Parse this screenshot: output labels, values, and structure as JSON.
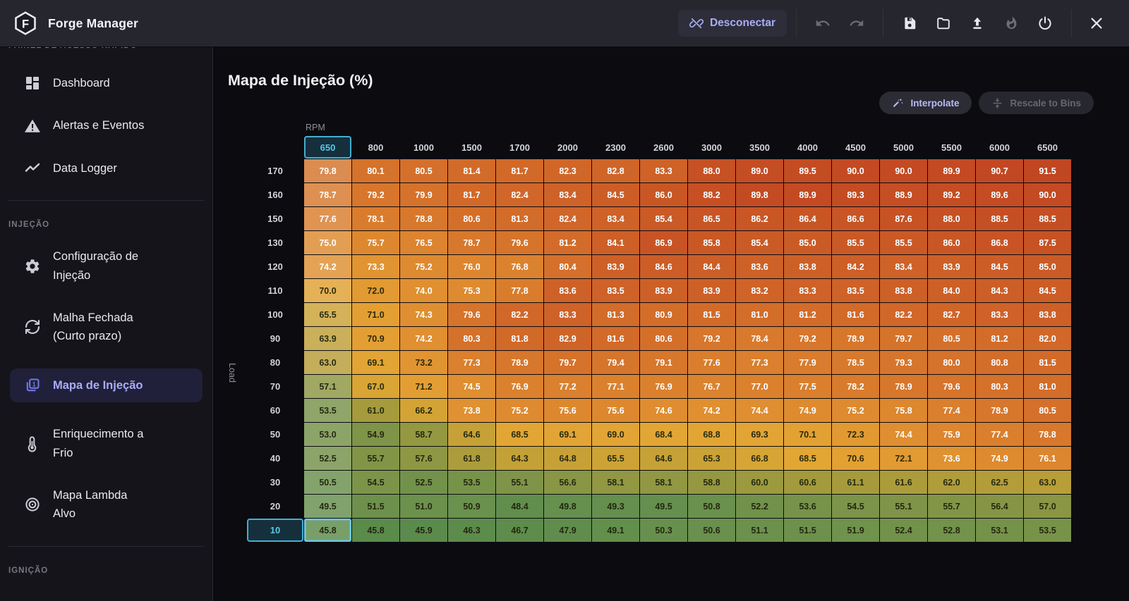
{
  "app": {
    "title": "Forge Manager"
  },
  "toolbar": {
    "disconnect_label": "Desconectar",
    "buttons": [
      "disconnect",
      "undo",
      "redo",
      "save",
      "open-folder",
      "upload",
      "burn",
      "power",
      "close"
    ]
  },
  "sidebar": {
    "sections": [
      {
        "label": "PAINEL DE ACESSO RÁPIDO",
        "clipped": true,
        "items": [
          {
            "icon": "dashboard",
            "label": "Dashboard"
          },
          {
            "icon": "alerts",
            "label": "Alertas e Eventos"
          },
          {
            "icon": "logger",
            "label": "Data Logger"
          }
        ]
      },
      {
        "label": "INJEÇÃO",
        "items": [
          {
            "icon": "gear",
            "label": "Configuração de\nInjeção"
          },
          {
            "icon": "sync",
            "label": "Malha Fechada\n(Curto prazo)"
          },
          {
            "icon": "injection-map",
            "label": "Mapa de Injeção",
            "active": true
          },
          {
            "icon": "thermometer",
            "label": "Enriquecimento a\nFrio"
          },
          {
            "icon": "lambda",
            "label": "Mapa Lambda\nAlvo"
          }
        ]
      },
      {
        "label": "IGNIÇÃO",
        "items": []
      }
    ]
  },
  "main": {
    "title": "Mapa de Injeção (%)",
    "interpolate_label": "Interpolate",
    "rescale_label": "Rescale to Bins"
  },
  "chart_data": {
    "type": "heatmap",
    "title": "Mapa de Injeção (%)",
    "xlabel": "RPM",
    "ylabel": "Load",
    "columns": [
      650,
      800,
      1000,
      1500,
      1700,
      2000,
      2300,
      2600,
      3000,
      3500,
      4000,
      4500,
      5000,
      5500,
      6000,
      6500
    ],
    "rows": [
      170,
      160,
      150,
      130,
      120,
      110,
      100,
      90,
      80,
      70,
      60,
      50,
      40,
      30,
      20,
      10
    ],
    "values": [
      [
        79.8,
        80.1,
        80.5,
        81.4,
        81.7,
        82.3,
        82.8,
        83.3,
        88.0,
        89.0,
        89.5,
        90.0,
        90.0,
        89.9,
        90.7,
        91.5
      ],
      [
        78.7,
        79.2,
        79.9,
        81.7,
        82.4,
        83.4,
        84.5,
        86.0,
        88.2,
        89.8,
        89.9,
        89.3,
        88.9,
        89.2,
        89.6,
        90.0
      ],
      [
        77.6,
        78.1,
        78.8,
        80.6,
        81.3,
        82.4,
        83.4,
        85.4,
        86.5,
        86.2,
        86.4,
        86.6,
        87.6,
        88.0,
        88.5,
        88.5
      ],
      [
        75.0,
        75.7,
        76.5,
        78.7,
        79.6,
        81.2,
        84.1,
        86.9,
        85.8,
        85.4,
        85.0,
        85.5,
        85.5,
        86.0,
        86.8,
        87.5
      ],
      [
        74.2,
        73.3,
        75.2,
        76.0,
        76.8,
        80.4,
        83.9,
        84.6,
        84.4,
        83.6,
        83.8,
        84.2,
        83.4,
        83.9,
        84.5,
        85.0
      ],
      [
        70.0,
        72.0,
        74.0,
        75.3,
        77.8,
        83.6,
        83.5,
        83.9,
        83.9,
        83.2,
        83.3,
        83.5,
        83.8,
        84.0,
        84.3,
        84.5
      ],
      [
        65.5,
        71.0,
        74.3,
        79.6,
        82.2,
        83.3,
        81.3,
        80.9,
        81.5,
        81.0,
        81.2,
        81.6,
        82.2,
        82.7,
        83.3,
        83.8
      ],
      [
        63.9,
        70.9,
        74.2,
        80.3,
        81.8,
        82.9,
        81.6,
        80.6,
        79.2,
        78.4,
        79.2,
        78.9,
        79.7,
        80.5,
        81.2,
        82.0
      ],
      [
        63.0,
        69.1,
        73.2,
        77.3,
        78.9,
        79.7,
        79.4,
        79.1,
        77.6,
        77.3,
        77.9,
        78.5,
        79.3,
        80.0,
        80.8,
        81.5
      ],
      [
        57.1,
        67.0,
        71.2,
        74.5,
        76.9,
        77.2,
        77.1,
        76.9,
        76.7,
        77.0,
        77.5,
        78.2,
        78.9,
        79.6,
        80.3,
        81.0
      ],
      [
        53.5,
        61.0,
        66.2,
        73.8,
        75.2,
        75.6,
        75.6,
        74.6,
        74.2,
        74.4,
        74.9,
        75.2,
        75.8,
        77.4,
        78.9,
        80.5
      ],
      [
        53.0,
        54.9,
        58.7,
        64.6,
        68.5,
        69.1,
        69.0,
        68.4,
        68.8,
        69.3,
        70.1,
        72.3,
        74.4,
        75.9,
        77.4,
        78.8
      ],
      [
        52.5,
        55.7,
        57.6,
        61.8,
        64.3,
        64.8,
        65.5,
        64.6,
        65.3,
        66.8,
        68.5,
        70.6,
        72.1,
        73.6,
        74.9,
        76.1
      ],
      [
        50.5,
        54.5,
        52.5,
        53.5,
        55.1,
        56.6,
        58.1,
        58.1,
        58.8,
        60.0,
        60.6,
        61.1,
        61.6,
        62.0,
        62.5,
        63.0
      ],
      [
        49.5,
        51.5,
        51.0,
        50.9,
        48.4,
        49.8,
        49.3,
        49.5,
        50.8,
        52.2,
        53.6,
        54.5,
        55.1,
        55.7,
        56.4,
        57.0
      ],
      [
        45.8,
        45.8,
        45.9,
        46.3,
        46.7,
        47.9,
        49.1,
        50.3,
        50.6,
        51.1,
        51.5,
        51.9,
        52.4,
        52.8,
        53.1,
        53.5
      ]
    ],
    "selected": {
      "column": 650,
      "row": 10,
      "value": 45.8
    },
    "color_scale": {
      "low": "#588a4b",
      "mid": "#e1a734",
      "high": "#bf4221"
    },
    "legend": "none",
    "grid": "off"
  }
}
